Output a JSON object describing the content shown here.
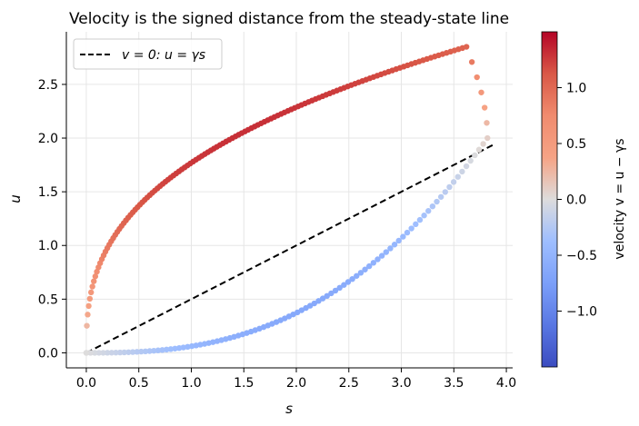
{
  "chart_data": {
    "type": "scatter",
    "title": "Velocity is the signed distance from the steady-state line",
    "xlabel": "s",
    "ylabel": "u",
    "xlim": [
      -0.19,
      4.06
    ],
    "ylim": [
      -0.14,
      2.99
    ],
    "x_ticks": [
      "0.0",
      "0.5",
      "1.0",
      "1.5",
      "2.0",
      "2.5",
      "3.0",
      "3.5",
      "4.0"
    ],
    "y_ticks": [
      "0.0",
      "0.5",
      "1.0",
      "1.5",
      "2.0",
      "2.5"
    ],
    "grid": true,
    "legend_position": "top-left",
    "legend_label": "v = 0: u = γs",
    "colorbar": {
      "label": "velocity v = u − γs",
      "ticks": [
        "−1.0",
        "−0.5",
        "0.0",
        "0.5",
        "1.0"
      ],
      "range": [
        -1.5,
        1.5
      ],
      "colormap": "coolwarm"
    },
    "steady_state_line": {
      "gamma": 0.5,
      "x": [
        0.0,
        3.88
      ]
    },
    "trajectory": {
      "upper_branch": {
        "s_max": 3.62,
        "u_max": 2.85,
        "u_min": 0.0
      },
      "return_branch": {
        "s_end": 3.82,
        "u_end": 2.0
      },
      "lower_branch": {
        "s_start": 3.82,
        "u_start": 2.0
      }
    }
  }
}
